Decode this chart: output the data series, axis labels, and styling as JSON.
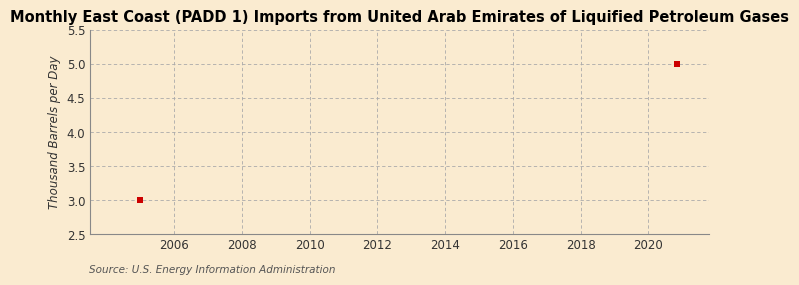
{
  "title": "Monthly East Coast (PADD 1) Imports from United Arab Emirates of Liquified Petroleum Gases",
  "ylabel": "Thousand Barrels per Day",
  "source": "Source: U.S. Energy Information Administration",
  "data_x": [
    2005.0,
    2020.83
  ],
  "data_y": [
    3.0,
    5.0
  ],
  "marker_color": "#cc0000",
  "marker": "s",
  "marker_size": 4,
  "xlim": [
    2003.5,
    2021.8
  ],
  "ylim": [
    2.5,
    5.5
  ],
  "xticks": [
    2006,
    2008,
    2010,
    2012,
    2014,
    2016,
    2018,
    2020
  ],
  "yticks": [
    2.5,
    3.0,
    3.5,
    4.0,
    4.5,
    5.0,
    5.5
  ],
  "background_color": "#faebd0",
  "plot_bg_color": "#faebd0",
  "grid_color": "#aaaaaa",
  "title_fontsize": 10.5,
  "label_fontsize": 8.5,
  "tick_fontsize": 8.5,
  "source_fontsize": 7.5
}
